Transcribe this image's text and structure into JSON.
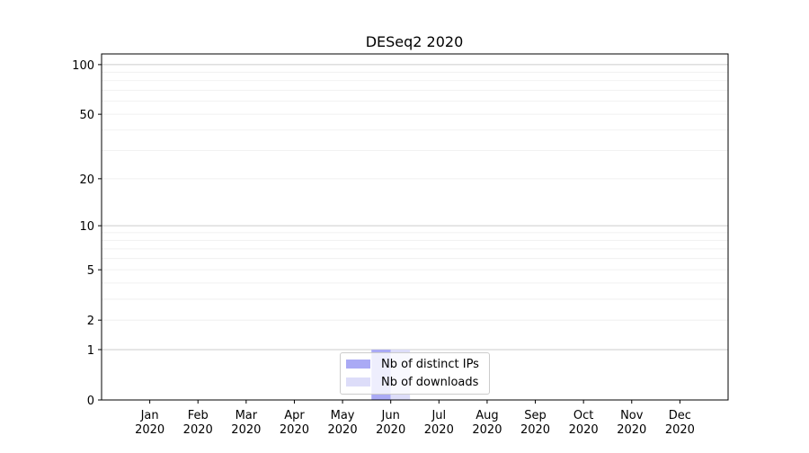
{
  "chart_data": {
    "type": "bar",
    "title": "DESeq2 2020",
    "y_scale": "log(1+y)",
    "ylim": [
      0,
      116
    ],
    "yticks": [
      0,
      1,
      2,
      5,
      10,
      20,
      50,
      100
    ],
    "ytick_labels": [
      "0",
      "1",
      "2",
      "5",
      "10",
      "20",
      "50",
      "100"
    ],
    "categories": [
      "Jan\n2020",
      "Feb\n2020",
      "Mar\n2020",
      "Apr\n2020",
      "May\n2020",
      "Jun\n2020",
      "Jul\n2020",
      "Aug\n2020",
      "Sep\n2020",
      "Oct\n2020",
      "Nov\n2020",
      "Dec\n2020"
    ],
    "series": [
      {
        "name": "Nb of distinct IPs",
        "color": "#aaaaf5",
        "values": [
          0,
          0,
          0,
          0,
          0,
          1,
          0,
          0,
          0,
          0,
          0,
          0
        ]
      },
      {
        "name": "Nb of downloads",
        "color": "#ddddf9",
        "values": [
          0,
          0,
          0,
          0,
          0,
          1,
          0,
          0,
          0,
          0,
          0,
          0
        ]
      }
    ],
    "grid": "y major and minor",
    "legend_placement": "lower-center"
  }
}
